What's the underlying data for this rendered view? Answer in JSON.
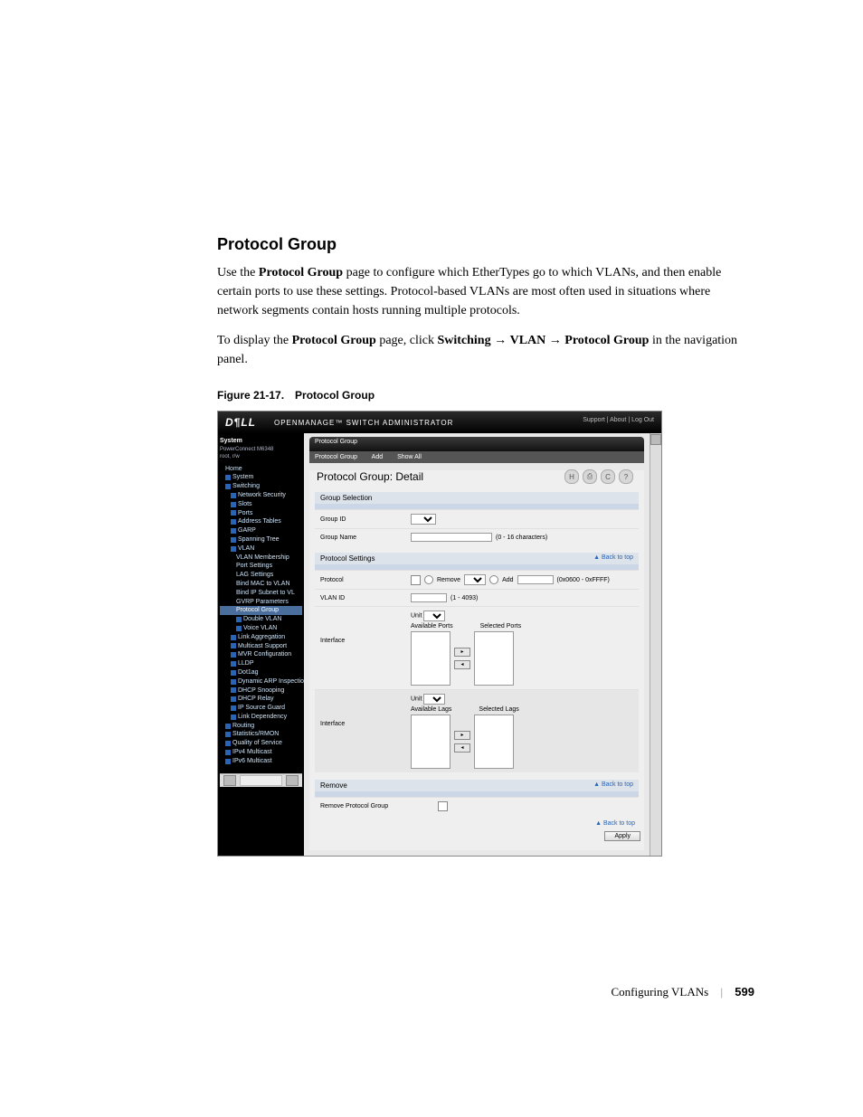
{
  "heading": "Protocol Group",
  "para1_a": "Use the ",
  "para1_b": "Protocol Group",
  "para1_c": " page to configure which EtherTypes go to which VLANs, and then enable certain ports to use these settings. Protocol-based VLANs are most often used in situations where network segments contain hosts running multiple protocols.",
  "para2_a": "To display the ",
  "para2_b": "Protocol Group",
  "para2_c": " page, click ",
  "para2_d": "Switching",
  "para2_e": " → ",
  "para2_f": "VLAN",
  "para2_g": " → ",
  "para2_h": "Protocol Group",
  "para2_i": " in the navigation panel.",
  "figcap": "Figure 21-17. Protocol Group",
  "footer_text": "Configuring VLANs",
  "footer_page": "599",
  "shot": {
    "logo": "D¶LL",
    "product": "OPENMANAGE™ SWITCH ADMINISTRATOR",
    "toplinks": "Support  |  About  |  Log Out",
    "nav_sys": "System",
    "nav_sub1": "PowerConnect M6348",
    "nav_sub2": "root, r/w",
    "nav_items": [
      {
        "t": "Home",
        "p": 0,
        "i": 0
      },
      {
        "t": "System",
        "p": 0,
        "i": 1
      },
      {
        "t": "Switching",
        "p": 0,
        "i": 1
      },
      {
        "t": "Network Security",
        "p": 1,
        "i": 1
      },
      {
        "t": "Slots",
        "p": 1,
        "i": 1
      },
      {
        "t": "Ports",
        "p": 1,
        "i": 1
      },
      {
        "t": "Address Tables",
        "p": 1,
        "i": 1
      },
      {
        "t": "GARP",
        "p": 1,
        "i": 1
      },
      {
        "t": "Spanning Tree",
        "p": 1,
        "i": 1
      },
      {
        "t": "VLAN",
        "p": 1,
        "i": 1
      },
      {
        "t": "VLAN Membership",
        "p": 2,
        "i": 0
      },
      {
        "t": "Port Settings",
        "p": 2,
        "i": 0
      },
      {
        "t": "LAG Settings",
        "p": 2,
        "i": 0
      },
      {
        "t": "Bind MAC to VLAN",
        "p": 2,
        "i": 0
      },
      {
        "t": "Bind IP Subnet to VL",
        "p": 2,
        "i": 0
      },
      {
        "t": "GVRP Parameters",
        "p": 2,
        "i": 0
      },
      {
        "t": "Protocol Group",
        "p": 2,
        "i": 0,
        "sel": 1
      },
      {
        "t": "Double VLAN",
        "p": 2,
        "i": 1
      },
      {
        "t": "Voice VLAN",
        "p": 2,
        "i": 1
      },
      {
        "t": "Link Aggregation",
        "p": 1,
        "i": 1
      },
      {
        "t": "Multicast Support",
        "p": 1,
        "i": 1
      },
      {
        "t": "MVR Configuration",
        "p": 1,
        "i": 1
      },
      {
        "t": "LLDP",
        "p": 1,
        "i": 1
      },
      {
        "t": "Dot1ag",
        "p": 1,
        "i": 1
      },
      {
        "t": "Dynamic ARP Inspection",
        "p": 1,
        "i": 1
      },
      {
        "t": "DHCP Snooping",
        "p": 1,
        "i": 1
      },
      {
        "t": "DHCP Relay",
        "p": 1,
        "i": 1
      },
      {
        "t": "IP Source Guard",
        "p": 1,
        "i": 1
      },
      {
        "t": "Link Dependency",
        "p": 1,
        "i": 1
      },
      {
        "t": "Routing",
        "p": 0,
        "i": 1
      },
      {
        "t": "Statistics/RMON",
        "p": 0,
        "i": 1
      },
      {
        "t": "Quality of Service",
        "p": 0,
        "i": 1
      },
      {
        "t": "IPv4 Multicast",
        "p": 0,
        "i": 1
      },
      {
        "t": "IPv6 Multicast",
        "p": 0,
        "i": 1
      }
    ],
    "crumb": "Protocol Group",
    "tabs": [
      "Protocol Group",
      "Add",
      "Show All"
    ],
    "detail_title": "Protocol Group: Detail",
    "sec_group": "Group Selection",
    "lbl_group_id": "Group ID",
    "lbl_group_name": "Group Name",
    "hint_group_name": "(0 - 16 characters)",
    "sec_proto": "Protocol Settings",
    "back": "▲ Back to top",
    "lbl_protocol": "Protocol",
    "lbl_remove": "Remove",
    "lbl_add": "Add",
    "hint_add": "(0x0600 - 0xFFFF)",
    "lbl_vlanid": "VLAN ID",
    "hint_vlan": "(1 - 4093)",
    "lbl_interface": "Interface",
    "lbl_unit": "Unit",
    "lbl_avail_ports": "Available Ports",
    "lbl_sel_ports": "Selected Ports",
    "lbl_avail_lags": "Available Lags",
    "lbl_sel_lags": "Selected Lags",
    "sec_remove": "Remove",
    "lbl_remove_pg": "Remove Protocol Group",
    "btn_apply": "Apply"
  }
}
